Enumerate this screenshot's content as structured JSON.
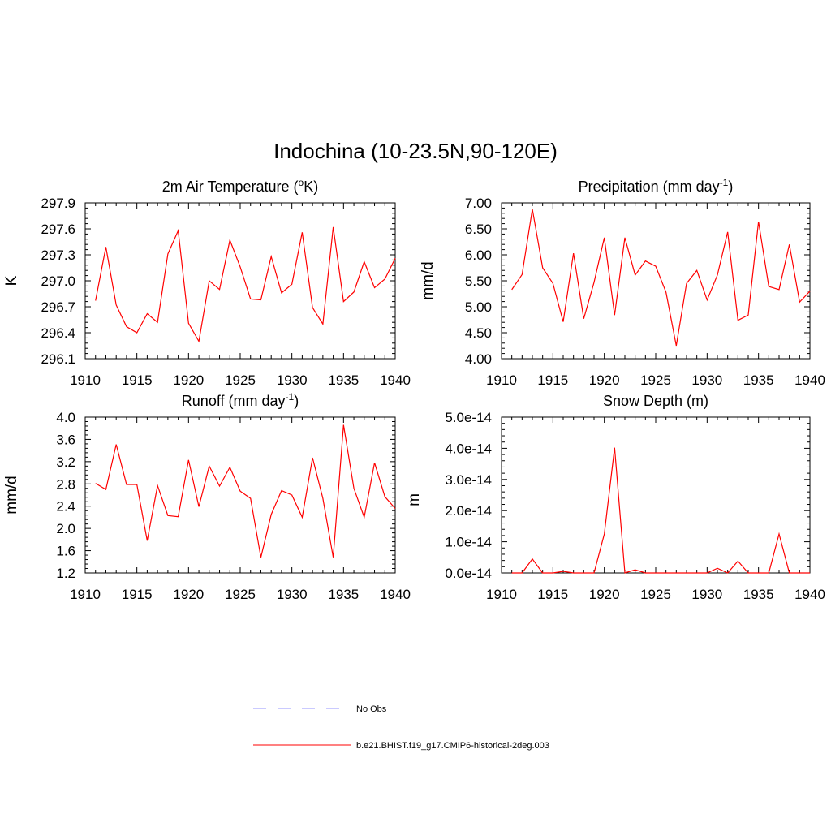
{
  "title": "Indochina (10-23.5N,90-120E)",
  "legend": {
    "placement": "bottom-center",
    "items": [
      {
        "label": "No Obs",
        "color": "#aaaaff",
        "style": "dashed"
      },
      {
        "label": "b.e21.BHIST.f19_g17.CMIP6-historical-2deg.003",
        "color": "#ff0000",
        "style": "solid"
      }
    ]
  },
  "chart_data": [
    {
      "type": "line",
      "title": "2m Air Temperature (",
      "title_sup": "o",
      "title_tail": "K)",
      "ylabel": "K",
      "xlabel": "",
      "xlim": [
        1910,
        1940
      ],
      "ylim": [
        296.1,
        297.9
      ],
      "xticks": [
        "1910",
        "1915",
        "1920",
        "1925",
        "1930",
        "1935",
        "1940"
      ],
      "yticks": [
        "296.1",
        "296.4",
        "296.7",
        "297.0",
        "297.3",
        "297.6",
        "297.9"
      ],
      "series": [
        {
          "color": "#ff0000",
          "x": [
            1911,
            1912,
            1913,
            1914,
            1915,
            1916,
            1917,
            1918,
            1919,
            1920,
            1921,
            1922,
            1923,
            1924,
            1925,
            1926,
            1927,
            1928,
            1929,
            1930,
            1931,
            1932,
            1933,
            1934,
            1935,
            1936,
            1937,
            1938,
            1939,
            1940
          ],
          "values": [
            296.77,
            297.39,
            296.72,
            296.47,
            296.4,
            296.62,
            296.52,
            297.31,
            297.58,
            296.51,
            296.3,
            297.0,
            296.9,
            297.47,
            297.16,
            296.79,
            296.78,
            297.28,
            296.86,
            296.96,
            297.56,
            296.69,
            296.5,
            297.62,
            296.76,
            296.87,
            297.22,
            296.92,
            297.02,
            297.26
          ]
        }
      ]
    },
    {
      "type": "line",
      "title": "Precipitation (mm day",
      "title_sup": "-1",
      "title_tail": ")",
      "ylabel": "mm/d",
      "xlabel": "",
      "xlim": [
        1910,
        1940
      ],
      "ylim": [
        4.0,
        7.0
      ],
      "xticks": [
        "1910",
        "1915",
        "1920",
        "1925",
        "1930",
        "1935",
        "1940"
      ],
      "yticks": [
        "4.00",
        "4.50",
        "5.00",
        "5.50",
        "6.00",
        "6.50",
        "7.00"
      ],
      "series": [
        {
          "color": "#ff0000",
          "x": [
            1911,
            1912,
            1913,
            1914,
            1915,
            1916,
            1917,
            1918,
            1919,
            1920,
            1921,
            1922,
            1923,
            1924,
            1925,
            1926,
            1927,
            1928,
            1929,
            1930,
            1931,
            1932,
            1933,
            1934,
            1935,
            1936,
            1937,
            1938,
            1939,
            1940
          ],
          "values": [
            5.33,
            5.62,
            6.88,
            5.75,
            5.45,
            4.71,
            6.03,
            4.77,
            5.47,
            6.33,
            4.84,
            6.33,
            5.61,
            5.88,
            5.78,
            5.28,
            4.25,
            5.45,
            5.7,
            5.13,
            5.61,
            6.44,
            4.74,
            4.84,
            6.64,
            5.39,
            5.33,
            6.2,
            5.09,
            5.3
          ]
        }
      ]
    },
    {
      "type": "line",
      "title": "Runoff (mm day",
      "title_sup": "-1",
      "title_tail": ")",
      "ylabel": "mm/d",
      "xlabel": "",
      "xlim": [
        1910,
        1940
      ],
      "ylim": [
        1.2,
        4.0
      ],
      "xticks": [
        "1910",
        "1915",
        "1920",
        "1925",
        "1930",
        "1935",
        "1940"
      ],
      "yticks": [
        "1.2",
        "1.6",
        "2.0",
        "2.4",
        "2.8",
        "3.2",
        "3.6",
        "4.0"
      ],
      "series": [
        {
          "color": "#ff0000",
          "x": [
            1911,
            1912,
            1913,
            1914,
            1915,
            1916,
            1917,
            1918,
            1919,
            1920,
            1921,
            1922,
            1923,
            1924,
            1925,
            1926,
            1927,
            1928,
            1929,
            1930,
            1931,
            1932,
            1933,
            1934,
            1935,
            1936,
            1937,
            1938,
            1939,
            1940
          ],
          "values": [
            2.81,
            2.7,
            3.51,
            2.79,
            2.79,
            1.78,
            2.77,
            2.23,
            2.21,
            3.23,
            2.39,
            3.12,
            2.76,
            3.1,
            2.67,
            2.54,
            1.48,
            2.25,
            2.68,
            2.6,
            2.2,
            3.27,
            2.54,
            1.48,
            3.86,
            2.72,
            2.2,
            3.18,
            2.57,
            2.36
          ]
        }
      ]
    },
    {
      "type": "line",
      "title": "Snow Depth (m)",
      "title_sup": "",
      "title_tail": "",
      "ylabel": "m",
      "xlabel": "",
      "xlim": [
        1910,
        1940
      ],
      "ylim": [
        0,
        5e-14
      ],
      "xticks": [
        "1910",
        "1915",
        "1920",
        "1925",
        "1930",
        "1935",
        "1940"
      ],
      "yticks": [
        "0.0e-14",
        "1.0e-14",
        "2.0e-14",
        "3.0e-14",
        "4.0e-14",
        "5.0e-14"
      ],
      "series": [
        {
          "color": "#ff0000",
          "x": [
            1911,
            1912,
            1913,
            1914,
            1915,
            1916,
            1917,
            1918,
            1919,
            1920,
            1921,
            1922,
            1923,
            1924,
            1925,
            1926,
            1927,
            1928,
            1929,
            1930,
            1931,
            1932,
            1933,
            1934,
            1935,
            1936,
            1937,
            1938,
            1939,
            1940
          ],
          "values": [
            0,
            0,
            4.5e-15,
            0,
            0,
            5e-16,
            0,
            0,
            0,
            1.25e-14,
            4.02e-14,
            0,
            1e-15,
            0,
            0,
            0,
            0,
            0,
            0,
            0,
            1.5e-15,
            0,
            3.8e-15,
            0,
            0,
            0,
            1.25e-14,
            0,
            0,
            0
          ]
        }
      ]
    }
  ]
}
